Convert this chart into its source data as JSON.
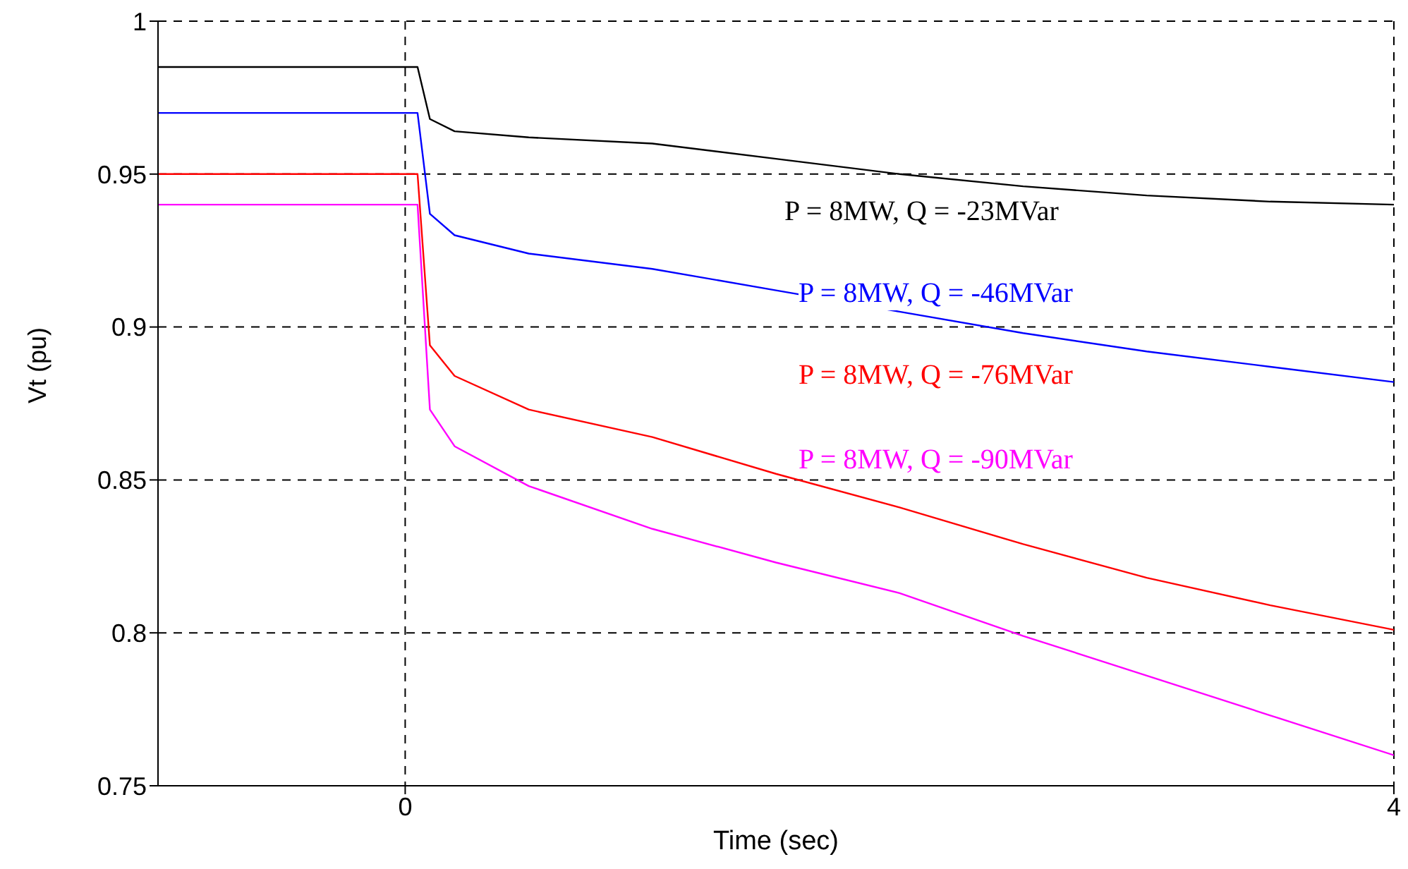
{
  "chart_data": {
    "type": "line",
    "xlabel": "Time (sec)",
    "ylabel": "Vt (pu)",
    "x": [
      -1,
      0.05,
      0.1,
      0.2,
      0.5,
      1,
      1.5,
      2,
      2.5,
      3,
      3.5,
      4
    ],
    "xlim": [
      -1,
      4
    ],
    "xticks": [
      0,
      4
    ],
    "ylim": [
      0.75,
      1
    ],
    "yticks": [
      0.75,
      0.8,
      0.85,
      0.9,
      0.95,
      1
    ],
    "grid": true,
    "legend": false,
    "marker": "none",
    "line_style": "solid",
    "series": [
      {
        "name": "P = 8MW, Q = -23MVar",
        "color": "#000000",
        "values": [
          0.985,
          0.985,
          0.968,
          0.964,
          0.962,
          0.96,
          0.955,
          0.95,
          0.946,
          0.943,
          0.941,
          0.94
        ]
      },
      {
        "name": "P = 8MW, Q = -46MVar",
        "color": "#0000ff",
        "values": [
          0.97,
          0.97,
          0.937,
          0.93,
          0.924,
          0.919,
          0.912,
          0.905,
          0.898,
          0.892,
          0.887,
          0.882
        ]
      },
      {
        "name": "P = 8MW, Q = -76MVar",
        "color": "#ff0000",
        "values": [
          0.95,
          0.95,
          0.894,
          0.884,
          0.873,
          0.864,
          0.852,
          0.841,
          0.829,
          0.818,
          0.809,
          0.801
        ]
      },
      {
        "name": "P = 8MW, Q = -90MVar",
        "color": "#ff00ff",
        "values": [
          0.94,
          0.94,
          0.873,
          0.861,
          0.848,
          0.834,
          0.823,
          0.813,
          0.799,
          0.786,
          0.773,
          0.76
        ]
      }
    ]
  }
}
